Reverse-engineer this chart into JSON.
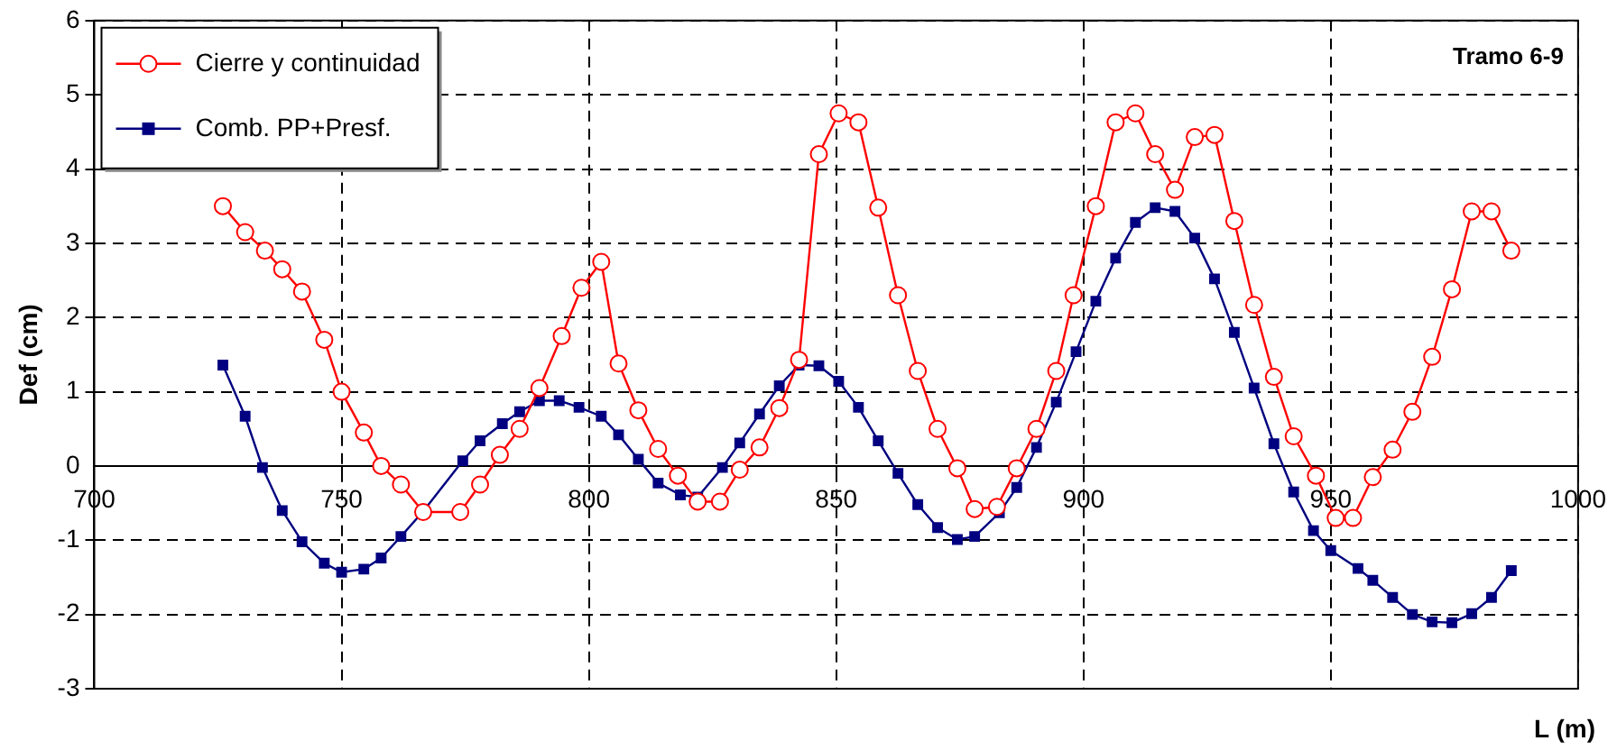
{
  "chart_data": {
    "type": "line",
    "xlabel": "L (m)",
    "ylabel": "Def (cm)",
    "annotations": [
      "Tramo 6-9"
    ],
    "xlim": [
      700,
      1000
    ],
    "xticks": [
      700,
      750,
      800,
      850,
      900,
      950,
      1000
    ],
    "ylim": [
      -3,
      6
    ],
    "yticks": [
      -3,
      -2,
      -1,
      0,
      1,
      2,
      3,
      4,
      5,
      6
    ],
    "grid": true,
    "legend": "top left",
    "line_style": "solid",
    "series": [
      {
        "name": "Cierre y continuidad",
        "color": "#ff0000",
        "marker": "circle",
        "x": [
          726,
          730.5,
          734.5,
          738,
          742,
          746.5,
          750,
          754.5,
          758,
          762,
          766.5,
          774,
          778,
          782,
          786,
          790,
          794.5,
          798.5,
          802.5,
          806,
          810,
          814,
          818,
          822,
          826.5,
          830.5,
          834.5,
          838.5,
          842.5,
          846.5,
          850.5,
          854.5,
          858.5,
          862.5,
          866.5,
          870.5,
          874.5,
          878,
          882.5,
          886.5,
          890.5,
          894.5,
          898,
          902.5,
          906.5,
          910.5,
          914.5,
          918.5,
          922.5,
          926.5,
          930.5,
          934.5,
          938.5,
          942.5,
          947,
          951,
          954.5,
          958.5,
          962.5,
          966.5,
          970.5,
          974.5,
          978.5,
          982.5,
          986.5
        ],
        "values": [
          3.5,
          3.15,
          2.9,
          2.65,
          2.35,
          1.7,
          1,
          0.45,
          0,
          -0.25,
          -0.62,
          -0.62,
          -0.25,
          0.15,
          0.5,
          1.05,
          1.75,
          2.4,
          2.75,
          1.38,
          0.75,
          0.23,
          -0.13,
          -0.48,
          -0.48,
          -0.05,
          0.25,
          0.78,
          1.43,
          4.2,
          4.75,
          4.63,
          3.48,
          2.3,
          1.28,
          0.5,
          -0.03,
          -0.58,
          -0.55,
          -0.03,
          0.5,
          1.28,
          2.3,
          3.5,
          4.63,
          4.75,
          4.2,
          3.72,
          4.43,
          4.46,
          3.3,
          2.17,
          1.2,
          0.4,
          -0.13,
          -0.7,
          -0.7,
          -0.15,
          0.22,
          0.73,
          1.47,
          2.38,
          3.43,
          3.43,
          2.9
        ]
      },
      {
        "name": "Comb. PP+Presf.",
        "color": "#000080",
        "marker": "square",
        "x": [
          726,
          730.5,
          734,
          738,
          742,
          746.5,
          750,
          754.5,
          758,
          762,
          766.5,
          774.5,
          778,
          782.5,
          786,
          790,
          794,
          798,
          802.5,
          806,
          810,
          814,
          818.5,
          822,
          827,
          830.5,
          834.5,
          838.5,
          842.5,
          846.5,
          850.5,
          854.5,
          858.5,
          862.5,
          866.5,
          870.5,
          874.5,
          878,
          883,
          886.5,
          890.5,
          894.5,
          898.5,
          902.5,
          906.5,
          910.5,
          914.5,
          918.5,
          922.5,
          926.5,
          930.5,
          934.5,
          938.5,
          942.5,
          946.5,
          950,
          955.5,
          958.5,
          962.5,
          966.5,
          970.5,
          974.5,
          978.5,
          982.5,
          986.5
        ],
        "values": [
          1.36,
          0.67,
          -0.02,
          -0.6,
          -1.02,
          -1.31,
          -1.43,
          -1.39,
          -1.24,
          -0.95,
          -0.61,
          0.07,
          0.34,
          0.57,
          0.73,
          0.88,
          0.88,
          0.79,
          0.67,
          0.42,
          0.09,
          -0.23,
          -0.39,
          -0.42,
          -0.02,
          0.31,
          0.7,
          1.08,
          1.36,
          1.35,
          1.14,
          0.79,
          0.34,
          -0.1,
          -0.52,
          -0.83,
          -0.99,
          -0.95,
          -0.63,
          -0.29,
          0.25,
          0.86,
          1.54,
          2.22,
          2.8,
          3.28,
          3.48,
          3.43,
          3.07,
          2.52,
          1.8,
          1.05,
          0.3,
          -0.35,
          -0.87,
          -1.14,
          -1.38,
          -1.54,
          -1.77,
          -2,
          -2.1,
          -2.11,
          -1.99,
          -1.77,
          -1.41
        ]
      }
    ]
  }
}
